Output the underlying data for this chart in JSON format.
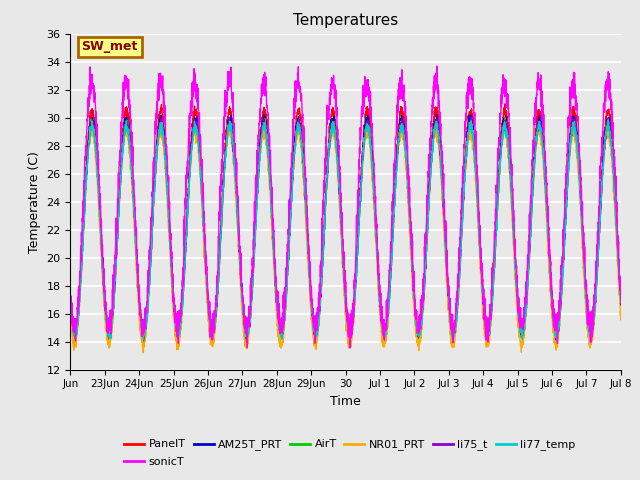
{
  "title": "Temperatures",
  "xlabel": "Time",
  "ylabel": "Temperature (C)",
  "ylim": [
    12,
    36
  ],
  "yticks": [
    12,
    14,
    16,
    18,
    20,
    22,
    24,
    26,
    28,
    30,
    32,
    34,
    36
  ],
  "bg_color": "#e8e8e8",
  "grid_color": "#ffffff",
  "series_order": [
    "PanelT",
    "AM25T_PRT",
    "AirT",
    "NR01_PRT",
    "li75_t",
    "li77_temp",
    "sonicT"
  ],
  "series_colors": {
    "PanelT": "#ff0000",
    "AM25T_PRT": "#0000cc",
    "AirT": "#00cc00",
    "NR01_PRT": "#ffaa00",
    "li75_t": "#8800cc",
    "li77_temp": "#00cccc",
    "sonicT": "#ff00ff"
  },
  "annotation_text": "SW_met",
  "annotation_fg": "#880000",
  "annotation_bg": "#ffff88",
  "annotation_border": "#aa6600",
  "n_days": 16,
  "n_points": 3000,
  "xtick_pos": [
    0,
    1,
    2,
    3,
    4,
    5,
    6,
    7,
    8,
    9,
    10,
    11,
    12,
    13,
    14,
    15,
    16
  ],
  "xtick_labels": [
    "Jun",
    "23Jun",
    "24Jun",
    "25Jun",
    "26Jun",
    "27Jun",
    "28Jun",
    "29Jun",
    "30",
    "Jul 1",
    "Jul 2",
    "Jul 3",
    "Jul 4",
    "Jul 5",
    "Jul 6",
    "Jul 7",
    "Jul 8"
  ],
  "lw": 1.0
}
